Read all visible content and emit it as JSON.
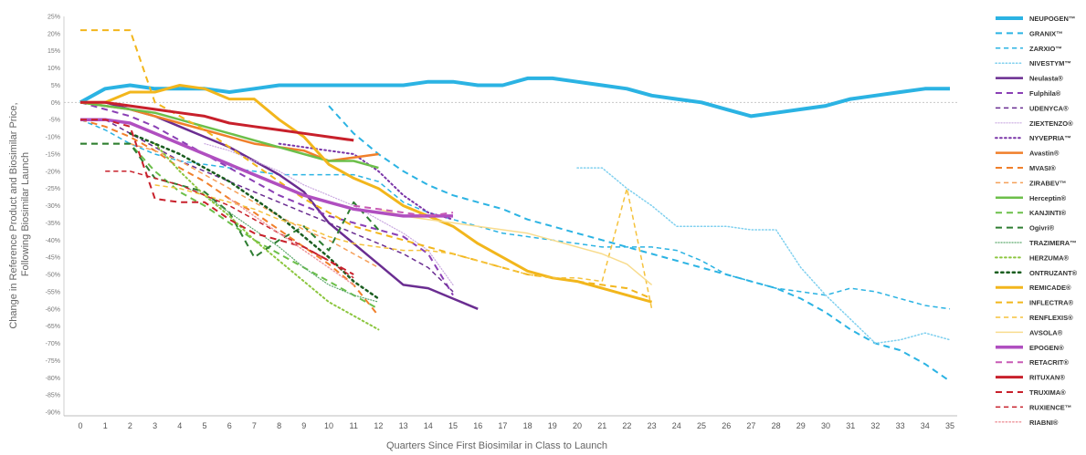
{
  "chart_data": {
    "type": "line",
    "title": "",
    "xlabel": "Quarters Since First Biosimilar in Class to Launch",
    "ylabel": [
      "Change in Reference Product and Biosimilar Price,",
      "Following Biosimilar Launch"
    ],
    "xlim": [
      0,
      35
    ],
    "ylim": [
      -90,
      25
    ],
    "x_ticks": [
      "0",
      "1",
      "2",
      "3",
      "4",
      "5",
      "6",
      "7",
      "8",
      "9",
      "10",
      "11",
      "12",
      "13",
      "14",
      "15",
      "16",
      "17",
      "18",
      "19",
      "20",
      "21",
      "22",
      "23",
      "24",
      "25",
      "26",
      "27",
      "28",
      "29",
      "30",
      "31",
      "32",
      "33",
      "34",
      "35"
    ],
    "y_ticks": [
      "25%",
      "20%",
      "15%",
      "10%",
      "5%",
      "0%",
      "-5%",
      "-10%",
      "-15%",
      "-20%",
      "-25%",
      "-30%",
      "-35%",
      "-40%",
      "-45%",
      "-50%",
      "-55%",
      "-60%",
      "-65%",
      "-70%",
      "-75%",
      "-80%",
      "-85%",
      "-90%"
    ],
    "legend_position": "right",
    "series": [
      {
        "name": "NEUPOGEN™",
        "color": "#2bb3e3",
        "dash": "solid",
        "width": 4,
        "x": [
          0,
          1,
          2,
          3,
          4,
          5,
          6,
          7,
          8,
          9,
          10,
          11,
          12,
          13,
          14,
          15,
          16,
          17,
          18,
          19,
          20,
          21,
          22,
          23,
          24,
          25,
          26,
          27,
          28,
          29,
          30,
          31,
          32,
          33,
          34,
          35
        ],
        "y": [
          0,
          4,
          5,
          4,
          4,
          4,
          3,
          4,
          5,
          5,
          5,
          5,
          5,
          5,
          6,
          6,
          5,
          5,
          7,
          7,
          6,
          5,
          4,
          2,
          1,
          0,
          -2,
          -4,
          -3,
          -2,
          -1,
          1,
          2,
          3,
          4,
          4
        ]
      },
      {
        "name": "GRANIX™",
        "color": "#2bb3e3",
        "dash": "dashed",
        "width": 2,
        "x": [
          10,
          11,
          12,
          13,
          14,
          15,
          16,
          17,
          18,
          19,
          20,
          21,
          22,
          23,
          24,
          25,
          26,
          27,
          28,
          29,
          30,
          31,
          32,
          33,
          34,
          35
        ],
        "y": [
          -1,
          -9,
          -15,
          -20,
          -24,
          -27,
          -29,
          -31,
          -34,
          -36,
          -38,
          -40,
          -42,
          -44,
          -46,
          -48,
          -50,
          -52,
          -54,
          -57,
          -61,
          -66,
          -70,
          -72,
          -76,
          -81
        ]
      },
      {
        "name": "ZARXIO™",
        "color": "#2bb3e3",
        "dash": "dashed",
        "width": 1.5,
        "x": [
          0,
          1,
          2,
          3,
          4,
          5,
          6,
          7,
          8,
          9,
          10,
          11,
          12,
          13,
          14,
          15,
          16,
          17,
          18,
          19,
          20,
          21,
          22,
          23,
          24,
          25,
          26,
          27,
          28,
          29,
          30,
          31,
          32,
          33,
          34,
          35
        ],
        "y": [
          -5,
          -8,
          -12,
          -15,
          -17,
          -18,
          -19,
          -20,
          -21,
          -21,
          -21,
          -21,
          -23,
          -29,
          -32,
          -34,
          -36,
          -38,
          -39,
          -40,
          -41,
          -42,
          -42,
          -42,
          -43,
          -46,
          -50,
          -52,
          -54,
          -55,
          -56,
          -54,
          -55,
          -57,
          -59,
          -60
        ]
      },
      {
        "name": "NIVESTYM™",
        "color": "#7fd0ef",
        "dash": "dotted",
        "width": 1.5,
        "x": [
          20,
          21,
          22,
          23,
          24,
          25,
          26,
          27,
          28,
          29,
          30,
          31,
          32,
          33,
          34,
          35
        ],
        "y": [
          -19,
          -19,
          -25,
          -30,
          -36,
          -36,
          -36,
          -37,
          -37,
          -48,
          -56,
          -63,
          -70,
          -69,
          -67,
          -69
        ]
      },
      {
        "name": "Neulasta®",
        "color": "#6a2d91",
        "dash": "solid",
        "width": 2.5,
        "x": [
          0,
          1,
          2,
          3,
          4,
          5,
          6,
          7,
          8,
          9,
          10,
          11,
          12,
          13,
          14,
          15,
          16
        ],
        "y": [
          0,
          0,
          -2,
          -4,
          -7,
          -10,
          -13,
          -17,
          -21,
          -26,
          -35,
          -41,
          -47,
          -53,
          -54,
          -57,
          -60
        ]
      },
      {
        "name": "Fulphila®",
        "color": "#8a3fb5",
        "dash": "dashed",
        "width": 2,
        "x": [
          0,
          1,
          2,
          3,
          4,
          5,
          6,
          7,
          8,
          9,
          10,
          11,
          12,
          13,
          14,
          15
        ],
        "y": [
          0,
          -2,
          -4,
          -7,
          -11,
          -15,
          -19,
          -23,
          -27,
          -30,
          -33,
          -35,
          -37,
          -39,
          -44,
          -56
        ]
      },
      {
        "name": "UDENYCA®",
        "color": "#6a2d91",
        "dash": "dashed",
        "width": 1.5,
        "x": [
          1,
          2,
          3,
          4,
          5,
          6,
          7,
          8,
          9,
          10,
          11,
          12,
          13,
          14,
          15
        ],
        "y": [
          -5,
          -9,
          -13,
          -17,
          -20,
          -23,
          -26,
          -29,
          -32,
          -35,
          -38,
          -41,
          -44,
          -48,
          -55
        ]
      },
      {
        "name": "ZIEXTENZO®",
        "color": "#c9a8e0",
        "dash": "dotted",
        "width": 1.2,
        "x": [
          5,
          6,
          7,
          8,
          9,
          10,
          11,
          12,
          13,
          14,
          15
        ],
        "y": [
          -12,
          -14,
          -17,
          -20,
          -24,
          -27,
          -30,
          -34,
          -38,
          -43,
          -53
        ]
      },
      {
        "name": "NYVEPRIA™",
        "color": "#7a35a8",
        "dash": "dotted",
        "width": 2,
        "x": [
          8,
          9,
          10,
          11,
          12,
          13,
          14,
          15
        ],
        "y": [
          -12,
          -13,
          -14,
          -15,
          -20,
          -27,
          -32,
          -34
        ]
      },
      {
        "name": "Avastin®",
        "color": "#f07f2a",
        "dash": "solid",
        "width": 2.5,
        "x": [
          0,
          1,
          2,
          3,
          4,
          5,
          6,
          7,
          8,
          9,
          10,
          11,
          12
        ],
        "y": [
          0,
          -1,
          -2,
          -4,
          -6,
          -8,
          -10,
          -12,
          -13,
          -14,
          -17,
          -16,
          -15
        ]
      },
      {
        "name": "MVASI®",
        "color": "#f07f2a",
        "dash": "dashed",
        "width": 2,
        "x": [
          0,
          1,
          2,
          3,
          4,
          5,
          6,
          7,
          8,
          9,
          10,
          11,
          12
        ],
        "y": [
          -5,
          -7,
          -10,
          -14,
          -19,
          -23,
          -28,
          -32,
          -37,
          -42,
          -47,
          -53,
          -62
        ]
      },
      {
        "name": "ZIRABEV™",
        "color": "#f5a05a",
        "dash": "dashed",
        "width": 1.5,
        "x": [
          2,
          3,
          4,
          5,
          6,
          7,
          8,
          9,
          10,
          11,
          12
        ],
        "y": [
          -12,
          -14,
          -17,
          -21,
          -25,
          -29,
          -33,
          -37,
          -40,
          -44,
          -48
        ]
      },
      {
        "name": "Herceptin®",
        "color": "#6cbf4a",
        "dash": "solid",
        "width": 2.5,
        "x": [
          0,
          1,
          2,
          3,
          4,
          5,
          6,
          7,
          8,
          9,
          10,
          11,
          12
        ],
        "y": [
          0,
          -1,
          -2,
          -3,
          -5,
          -7,
          -9,
          -11,
          -13,
          -15,
          -17,
          -17,
          -19
        ]
      },
      {
        "name": "KANJINTI®",
        "color": "#6cbf4a",
        "dash": "dashed",
        "width": 2,
        "x": [
          0,
          1,
          2,
          3,
          4,
          5,
          6,
          7,
          8,
          9,
          10,
          11,
          12
        ],
        "y": [
          -12,
          -12,
          -12,
          -20,
          -26,
          -30,
          -35,
          -40,
          -44,
          -48,
          -52,
          -56,
          -60
        ]
      },
      {
        "name": "Ogivri®",
        "color": "#2e7d32",
        "dash": "dashed",
        "width": 2,
        "x": [
          0,
          1,
          2,
          3,
          4,
          5,
          6,
          7,
          8,
          9,
          10,
          11,
          12
        ],
        "y": [
          -12,
          -12,
          -12,
          -22,
          -24,
          -26,
          -32,
          -45,
          -40,
          -36,
          -43,
          -29,
          -37
        ]
      },
      {
        "name": "TRAZIMERA™",
        "color": "#5aa86a",
        "dash": "dotted",
        "width": 1.2,
        "x": [
          4,
          5,
          6,
          7,
          8,
          9,
          10,
          11,
          12
        ],
        "y": [
          -24,
          -27,
          -32,
          -37,
          -42,
          -48,
          -53,
          -56,
          -58
        ]
      },
      {
        "name": "HERZUMA®",
        "color": "#8cc63f",
        "dash": "dotted",
        "width": 2,
        "x": [
          3,
          4,
          5,
          6,
          7,
          8,
          9,
          10,
          11,
          12
        ],
        "y": [
          -12,
          -20,
          -27,
          -33,
          -40,
          -46,
          -52,
          -58,
          -62,
          -66
        ]
      },
      {
        "name": "ONTRUZANT®",
        "color": "#1b5e20",
        "dash": "dotted",
        "width": 2.5,
        "x": [
          2,
          3,
          4,
          5,
          6,
          7,
          8,
          9,
          10,
          11,
          12
        ],
        "y": [
          -9,
          -12,
          -15,
          -19,
          -23,
          -28,
          -33,
          -39,
          -45,
          -52,
          -57
        ]
      },
      {
        "name": "REMICADE®",
        "color": "#f2b61c",
        "dash": "solid",
        "width": 3,
        "x": [
          0,
          1,
          2,
          3,
          4,
          5,
          6,
          7,
          8,
          9,
          10,
          11,
          12,
          13,
          14,
          15,
          16,
          17,
          18,
          19,
          20,
          21,
          22,
          23
        ],
        "y": [
          0,
          0,
          3,
          3,
          5,
          4,
          1,
          1,
          -5,
          -10,
          -18,
          -22,
          -25,
          -30,
          -33,
          -36,
          -41,
          -45,
          -49,
          -51,
          -52,
          -54,
          -56,
          -58
        ]
      },
      {
        "name": "INFLECTRA®",
        "color": "#f2b61c",
        "dash": "dashed",
        "width": 2,
        "x": [
          0,
          1,
          2,
          3,
          4,
          5,
          6,
          7,
          8,
          9,
          10,
          11,
          12,
          13,
          14,
          15,
          16,
          17,
          18,
          19,
          20,
          21,
          22,
          23
        ],
        "y": [
          21,
          21,
          21,
          0,
          -4,
          -8,
          -13,
          -18,
          -23,
          -28,
          -32,
          -36,
          -38,
          -40,
          -42,
          -44,
          -46,
          -48,
          -50,
          -51,
          -52,
          -53,
          -54,
          -57
        ]
      },
      {
        "name": "RENFLEXIS®",
        "color": "#f5c23c",
        "dash": "dashed",
        "width": 1.5,
        "x": [
          3,
          4,
          5,
          6,
          7,
          8,
          9,
          10,
          11,
          12,
          13,
          14,
          15,
          16,
          17,
          18,
          19,
          20,
          21,
          22,
          23
        ],
        "y": [
          -24,
          -25,
          -27,
          -29,
          -31,
          -34,
          -36,
          -39,
          -41,
          -42,
          -43,
          -43,
          -44,
          -46,
          -48,
          -50,
          -51,
          -51,
          -52,
          -25,
          -60
        ]
      },
      {
        "name": "AVSOLA®",
        "color": "#f8dc8e",
        "dash": "solid",
        "width": 1.5,
        "x": [
          12,
          13,
          14,
          15,
          16,
          17,
          18,
          19,
          20,
          21,
          22,
          23
        ],
        "y": [
          -31,
          -33,
          -34,
          -35,
          -36,
          -37,
          -38,
          -40,
          -42,
          -44,
          -47,
          -53
        ]
      },
      {
        "name": "EPOGEN®",
        "color": "#b04fc0",
        "dash": "solid",
        "width": 3.5,
        "x": [
          0,
          1,
          2,
          3,
          4,
          5,
          6,
          7,
          8,
          9,
          10,
          11,
          12,
          13,
          14,
          15
        ],
        "y": [
          -5,
          -5,
          -6,
          -9,
          -12,
          -15,
          -18,
          -21,
          -24,
          -27,
          -29,
          -31,
          -32,
          -33,
          -33,
          -33
        ]
      },
      {
        "name": "RETACRIT®",
        "color": "#c85ab5",
        "dash": "dashed",
        "width": 2,
        "x": [
          11,
          12,
          13,
          14,
          15
        ],
        "y": [
          -30,
          -31,
          -32,
          -33,
          -32
        ]
      },
      {
        "name": "RITUXAN®",
        "color": "#c8202b",
        "dash": "solid",
        "width": 3,
        "x": [
          0,
          1,
          2,
          3,
          4,
          5,
          6,
          7,
          8,
          9,
          10,
          11
        ],
        "y": [
          0,
          0,
          -1,
          -2,
          -3,
          -4,
          -6,
          -7,
          -8,
          -9,
          -10,
          -11
        ]
      },
      {
        "name": "TRUXIMA®",
        "color": "#c8202b",
        "dash": "dashed",
        "width": 2,
        "x": [
          0,
          1,
          2,
          3,
          4,
          5,
          6,
          7,
          8,
          9,
          10,
          11
        ],
        "y": [
          -5,
          -5,
          -7,
          -28,
          -29,
          -29,
          -34,
          -38,
          -40,
          -42,
          -46,
          -50
        ]
      },
      {
        "name": "RUXIENCE™",
        "color": "#c8202b",
        "dash": "dashed",
        "width": 1.5,
        "x": [
          1,
          2,
          3,
          4,
          5,
          6,
          7,
          8,
          9,
          10,
          11
        ],
        "y": [
          -20,
          -20,
          -22,
          -24,
          -27,
          -30,
          -34,
          -38,
          -42,
          -46,
          -51
        ]
      },
      {
        "name": "RIABNI®",
        "color": "#ef9aa0",
        "dash": "dotted",
        "width": 1.5,
        "x": [
          6,
          7,
          8,
          9,
          10,
          11
        ],
        "y": [
          -28,
          -33,
          -38,
          -43,
          -48,
          -53
        ]
      }
    ]
  }
}
